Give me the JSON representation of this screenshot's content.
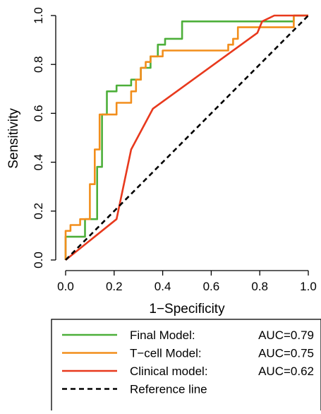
{
  "chart_data": {
    "type": "line",
    "title": "",
    "xlabel": "1−Specificity",
    "ylabel": "Sensitivity",
    "xlim": [
      0,
      1
    ],
    "ylim": [
      0,
      1
    ],
    "x_ticks": [
      "0.0",
      "0.2",
      "0.4",
      "0.6",
      "0.8",
      "1.0"
    ],
    "y_ticks": [
      "0.0",
      "0.2",
      "0.4",
      "0.6",
      "0.8",
      "1.0"
    ],
    "grid": false,
    "legend_position": "bottom",
    "series": [
      {
        "name": "Final Model",
        "legend_text": "Final Model:",
        "auc_text": "AUC=0.79",
        "color": "#4daf3a",
        "style": "solid",
        "points": [
          [
            0.0,
            0.0
          ],
          [
            0.0,
            0.095
          ],
          [
            0.08,
            0.095
          ],
          [
            0.08,
            0.167
          ],
          [
            0.13,
            0.167
          ],
          [
            0.13,
            0.381
          ],
          [
            0.15,
            0.381
          ],
          [
            0.15,
            0.595
          ],
          [
            0.17,
            0.595
          ],
          [
            0.17,
            0.69
          ],
          [
            0.21,
            0.69
          ],
          [
            0.21,
            0.714
          ],
          [
            0.27,
            0.714
          ],
          [
            0.27,
            0.738
          ],
          [
            0.31,
            0.738
          ],
          [
            0.31,
            0.786
          ],
          [
            0.35,
            0.786
          ],
          [
            0.35,
            0.833
          ],
          [
            0.38,
            0.833
          ],
          [
            0.38,
            0.881
          ],
          [
            0.41,
            0.881
          ],
          [
            0.41,
            0.905
          ],
          [
            0.48,
            0.905
          ],
          [
            0.48,
            0.976
          ],
          [
            0.94,
            0.976
          ],
          [
            0.94,
            1.0
          ],
          [
            1.0,
            1.0
          ]
        ]
      },
      {
        "name": "T-cell Model",
        "legend_text": "T−cell Model:",
        "auc_text": "AUC=0.75",
        "color": "#f28e1c",
        "style": "solid",
        "points": [
          [
            0.0,
            0.0
          ],
          [
            0.0,
            0.119
          ],
          [
            0.02,
            0.119
          ],
          [
            0.02,
            0.143
          ],
          [
            0.06,
            0.143
          ],
          [
            0.06,
            0.167
          ],
          [
            0.1,
            0.167
          ],
          [
            0.1,
            0.31
          ],
          [
            0.12,
            0.31
          ],
          [
            0.12,
            0.452
          ],
          [
            0.14,
            0.452
          ],
          [
            0.14,
            0.595
          ],
          [
            0.21,
            0.595
          ],
          [
            0.21,
            0.643
          ],
          [
            0.27,
            0.643
          ],
          [
            0.27,
            0.69
          ],
          [
            0.29,
            0.69
          ],
          [
            0.29,
            0.738
          ],
          [
            0.31,
            0.738
          ],
          [
            0.31,
            0.786
          ],
          [
            0.33,
            0.786
          ],
          [
            0.33,
            0.81
          ],
          [
            0.35,
            0.81
          ],
          [
            0.35,
            0.833
          ],
          [
            0.4,
            0.833
          ],
          [
            0.4,
            0.857
          ],
          [
            0.67,
            0.857
          ],
          [
            0.67,
            0.881
          ],
          [
            0.69,
            0.881
          ],
          [
            0.69,
            0.905
          ],
          [
            0.71,
            0.905
          ],
          [
            0.71,
            0.952
          ],
          [
            0.94,
            0.952
          ],
          [
            0.94,
            1.0
          ],
          [
            1.0,
            1.0
          ]
        ]
      },
      {
        "name": "Clinical model",
        "legend_text": "Clinical model:",
        "auc_text": "AUC=0.62",
        "color": "#e8391d",
        "style": "solid",
        "points": [
          [
            0.0,
            0.0
          ],
          [
            0.21,
            0.167
          ],
          [
            0.27,
            0.452
          ],
          [
            0.36,
            0.619
          ],
          [
            0.79,
            0.929
          ],
          [
            0.81,
            0.976
          ],
          [
            0.86,
            1.0
          ],
          [
            1.0,
            1.0
          ]
        ]
      },
      {
        "name": "Reference line",
        "legend_text": "Reference line",
        "auc_text": "",
        "color": "#000000",
        "style": "dashed",
        "points": [
          [
            0.0,
            0.0
          ],
          [
            1.0,
            1.0
          ]
        ]
      }
    ]
  }
}
